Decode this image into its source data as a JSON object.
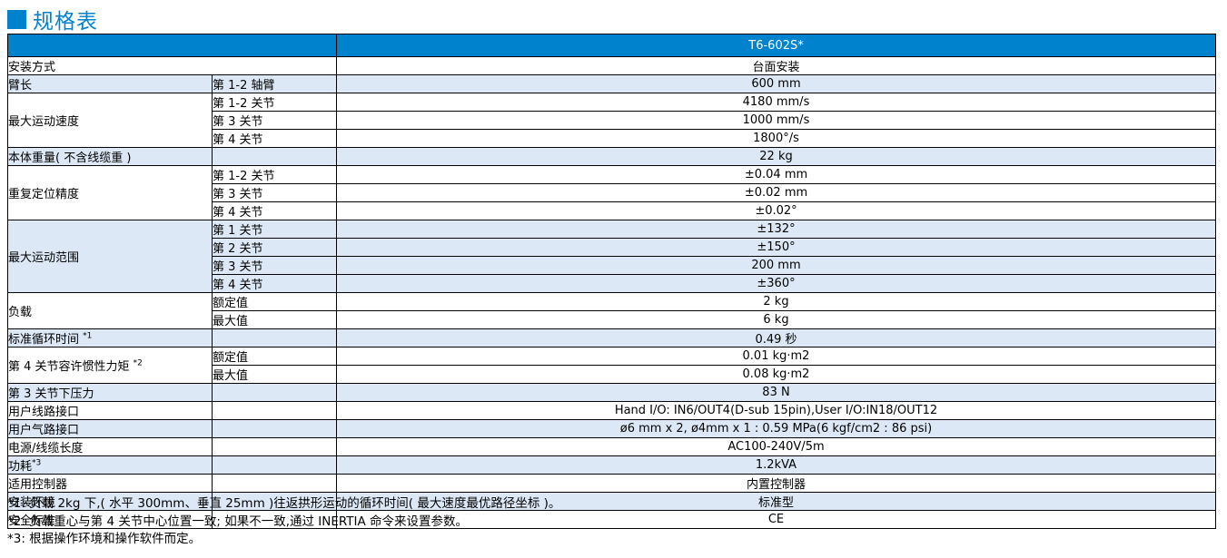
{
  "page": {
    "title": "规格表"
  },
  "colors": {
    "accent_blue": "#0082cd",
    "row_alt_blue": "#dce8f5",
    "border": "#000000",
    "header_text": "#ffffff"
  },
  "table": {
    "model": "T6-602S*",
    "groups": [
      {
        "label": "安装方式",
        "sup": "",
        "merged": true,
        "rows": [
          {
            "sub": "",
            "value": "台面安装"
          }
        ]
      },
      {
        "label": "臂长",
        "sup": "",
        "rows": [
          {
            "sub": "第 1-2 轴臂",
            "value": "600 mm"
          }
        ]
      },
      {
        "label": "最大运动速度",
        "sup": "",
        "rows": [
          {
            "sub": "第 1-2 关节",
            "value": "4180 mm/s"
          },
          {
            "sub": "第 3 关节",
            "value": "1000 mm/s"
          },
          {
            "sub": "第 4 关节",
            "value": "1800°/s"
          }
        ]
      },
      {
        "label": "本体重量( 不含线缆重 )",
        "sup": "",
        "rows": [
          {
            "sub": "",
            "value": "22 kg"
          }
        ]
      },
      {
        "label": "重复定位精度",
        "sup": "",
        "rows": [
          {
            "sub": "第 1-2 关节",
            "value": "±0.04 mm"
          },
          {
            "sub": "第 3 关节",
            "value": "±0.02 mm"
          },
          {
            "sub": "第 4 关节",
            "value": "±0.02°"
          }
        ]
      },
      {
        "label": "最大运动范围",
        "sup": "",
        "rows": [
          {
            "sub": "第 1 关节",
            "value": "±132°"
          },
          {
            "sub": "第 2 关节",
            "value": "±150°"
          },
          {
            "sub": "第 3 关节",
            "value": "200 mm"
          },
          {
            "sub": "第 4 关节",
            "value": "±360°"
          }
        ]
      },
      {
        "label": "负载",
        "sup": "",
        "rows": [
          {
            "sub": "额定值",
            "value": "2 kg"
          },
          {
            "sub": "最大值",
            "value": "6 kg"
          }
        ]
      },
      {
        "label": "标准循环时间 ",
        "sup": "*1",
        "rows": [
          {
            "sub": "",
            "value": "0.49 秒"
          }
        ]
      },
      {
        "label": "第 4 关节容许惯性力矩 ",
        "sup": "*2",
        "rows": [
          {
            "sub": "额定值",
            "value": "0.01 kg·m2"
          },
          {
            "sub": "最大值",
            "value": "0.08 kg·m2"
          }
        ]
      },
      {
        "label": "第 3 关节下压力",
        "sup": "",
        "rows": [
          {
            "sub": "",
            "value": "83 N"
          }
        ]
      },
      {
        "label": "用户线路接口",
        "sup": "",
        "rows": [
          {
            "sub": "",
            "value": "Hand I/O: IN6/OUT4(D-sub 15pin),User I/O:IN18/OUT12"
          }
        ]
      },
      {
        "label": "用户气路接口",
        "sup": "",
        "rows": [
          {
            "sub": "",
            "value": "ø6 mm x 2, ø4mm x 1 : 0.59 MPa(6 kgf/cm2 : 86 psi)"
          }
        ]
      },
      {
        "label": "电源/线缆长度",
        "sup": "",
        "rows": [
          {
            "sub": "",
            "value": "AC100-240V/5m"
          }
        ]
      },
      {
        "label": "功耗",
        "sup": "*3",
        "rows": [
          {
            "sub": "",
            "value": "1.2kVA"
          }
        ]
      },
      {
        "label": "适用控制器",
        "sup": "",
        "rows": [
          {
            "sub": "",
            "value": "内置控制器"
          }
        ]
      },
      {
        "label": "安装环境",
        "sup": "",
        "rows": [
          {
            "sub": "",
            "value": "标准型"
          }
        ]
      },
      {
        "label": "安全标准",
        "sup": "",
        "rows": [
          {
            "sub": "",
            "value": "CE"
          }
        ]
      }
    ]
  },
  "footnotes": [
    "*1: 负载 2kg 下,( 水平 300mm、垂直 25mm )往返拱形运动的循环时间( 最大速度最优路径坐标 )。",
    "*2: 负载重心与第 4 关节中心位置一致; 如果不一致,通过 INERTIA 命令来设置参数。",
    "*3: 根据操作环境和操作软件而定。"
  ]
}
